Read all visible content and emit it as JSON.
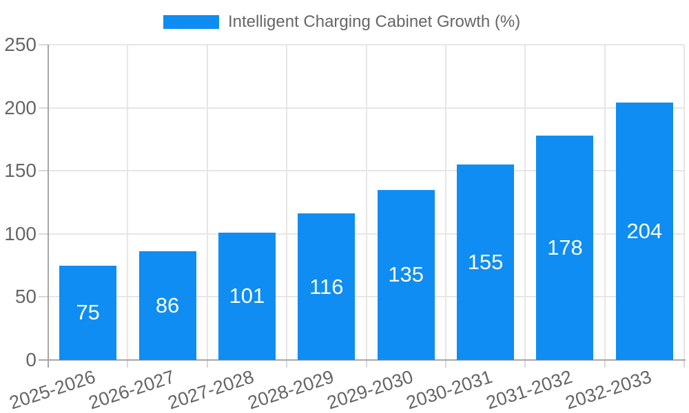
{
  "legend": {
    "label": "Intelligent Charging Cabinet Growth (%)"
  },
  "colors": {
    "bar": "#0f8df2",
    "grid": "#e6e6e6",
    "axis": "#a6a6a6",
    "tick": "#d8d8d8",
    "text": "#666666",
    "value_label": "#ffffff",
    "background": "#ffffff"
  },
  "chart_data": {
    "type": "bar",
    "title": "Intelligent Charging Cabinet Growth (%)",
    "series_name": "Intelligent Charging Cabinet Growth (%)",
    "categories": [
      "2025-2026",
      "2026-2027",
      "2027-2028",
      "2028-2029",
      "2029-2030",
      "2030-2031",
      "2031-2032",
      "2032-2033"
    ],
    "values": [
      75,
      86,
      101,
      116,
      135,
      155,
      178,
      204
    ],
    "xlabel": "",
    "ylabel": "",
    "ylim": [
      0,
      250
    ],
    "yticks": [
      0,
      50,
      100,
      150,
      200,
      250
    ],
    "grid": true,
    "legend_position": "top-center",
    "value_labels": "inside-center",
    "x_tick_rotation_deg": -18
  }
}
